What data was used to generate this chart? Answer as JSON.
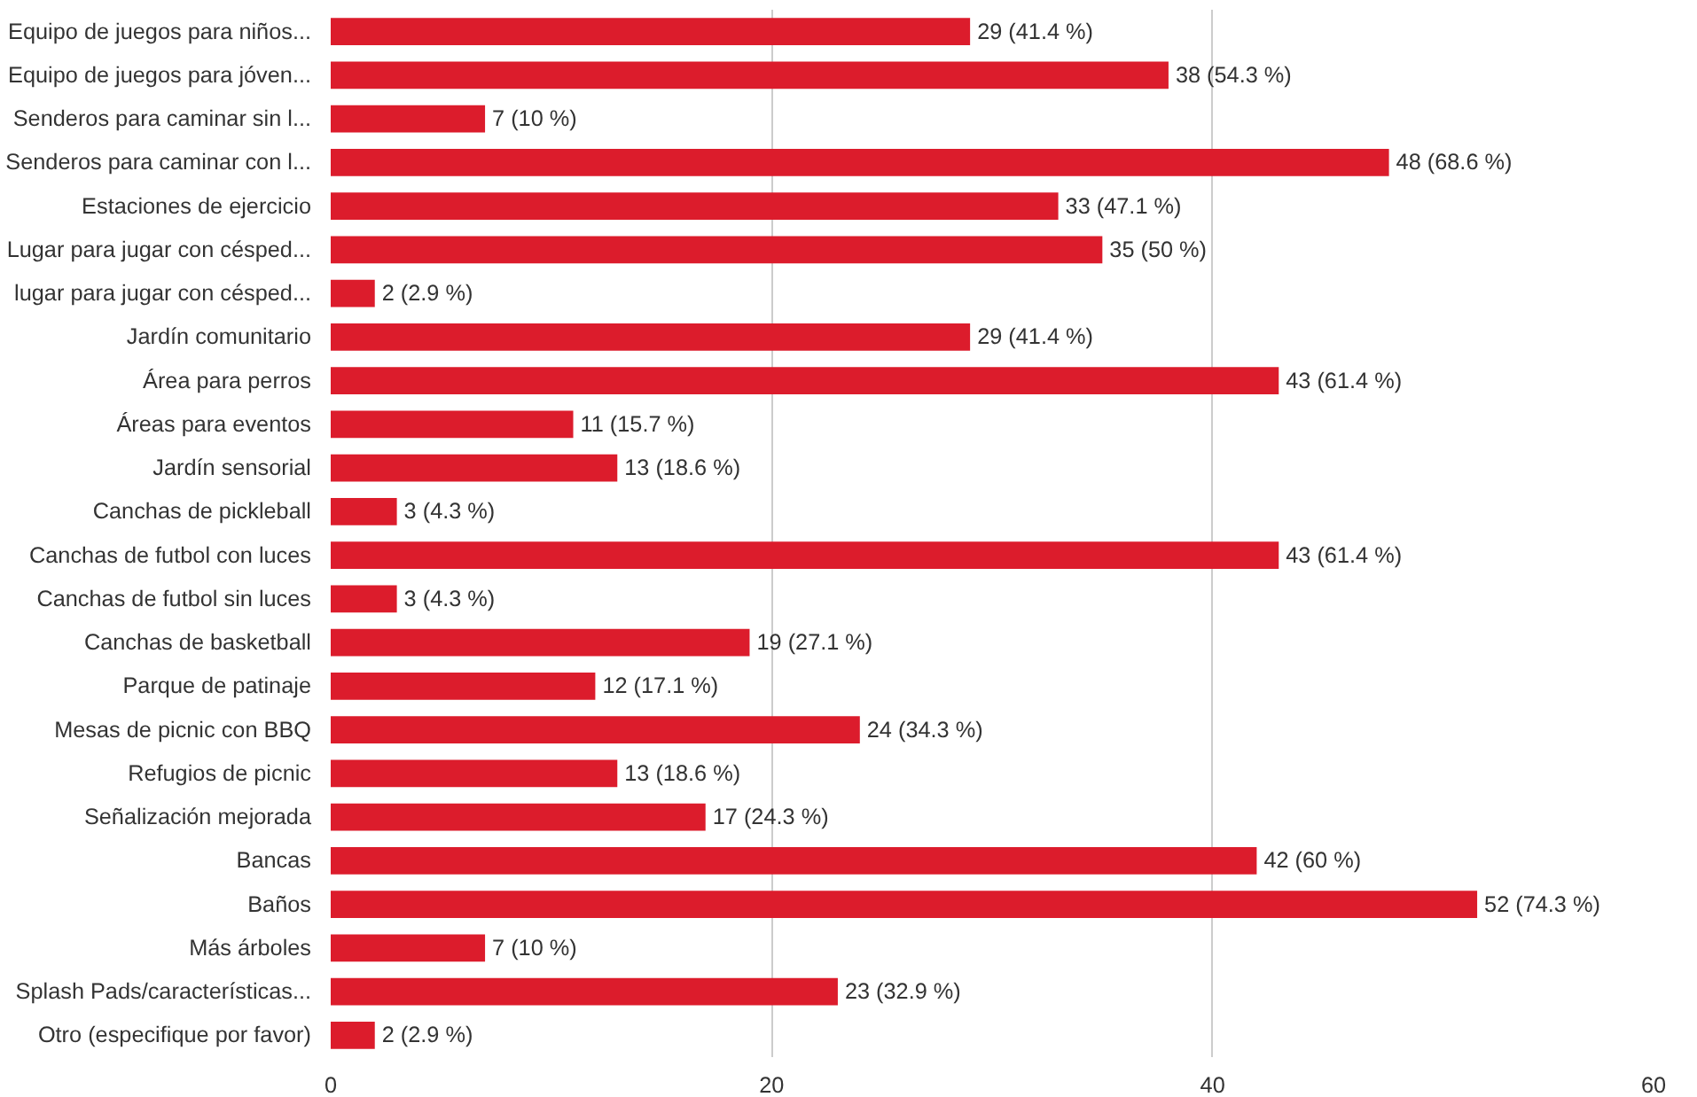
{
  "chart_data": {
    "type": "bar",
    "orientation": "horizontal",
    "categories": [
      "Equipo de juegos para niños...",
      "Equipo de juegos para jóven...",
      "Senderos para caminar sin l...",
      "Senderos para caminar con l...",
      "Estaciones de ejercicio",
      "Lugar para jugar con césped...",
      "lugar para jugar con césped...",
      "Jardín comunitario",
      "Área para perros",
      "Áreas para eventos",
      "Jardín sensorial",
      "Canchas de pickleball",
      "Canchas de futbol con luces",
      "Canchas de futbol sin luces",
      "Canchas de basketball",
      "Parque de patinaje",
      "Mesas de picnic con BBQ",
      "Refugios de picnic",
      "Señalización mejorada",
      "Bancas",
      "Baños",
      "Más árboles",
      "Splash Pads/características...",
      "Otro (especifique por favor)"
    ],
    "values": [
      29,
      38,
      7,
      48,
      33,
      35,
      2,
      29,
      43,
      11,
      13,
      3,
      43,
      3,
      19,
      12,
      24,
      13,
      17,
      42,
      52,
      7,
      23,
      2
    ],
    "value_labels": [
      "29 (41.4 %)",
      "38 (54.3 %)",
      "7 (10 %)",
      "48 (68.6 %)",
      "33 (47.1 %)",
      "35 (50 %)",
      "2 (2.9 %)",
      "29 (41.4 %)",
      "43 (61.4 %)",
      "11 (15.7 %)",
      "13 (18.6 %)",
      "3 (4.3 %)",
      "43 (61.4 %)",
      "3 (4.3 %)",
      "19 (27.1 %)",
      "12 (17.1 %)",
      "24 (34.3 %)",
      "13 (18.6 %)",
      "17 (24.3 %)",
      "42 (60 %)",
      "52 (74.3 %)",
      "7 (10 %)",
      "23 (32.9 %)",
      "2 (2.9 %)"
    ],
    "color": "#dc1c2c",
    "xlim": [
      0,
      60
    ],
    "xticks": [
      0,
      20,
      40,
      60
    ],
    "grid": "x"
  }
}
